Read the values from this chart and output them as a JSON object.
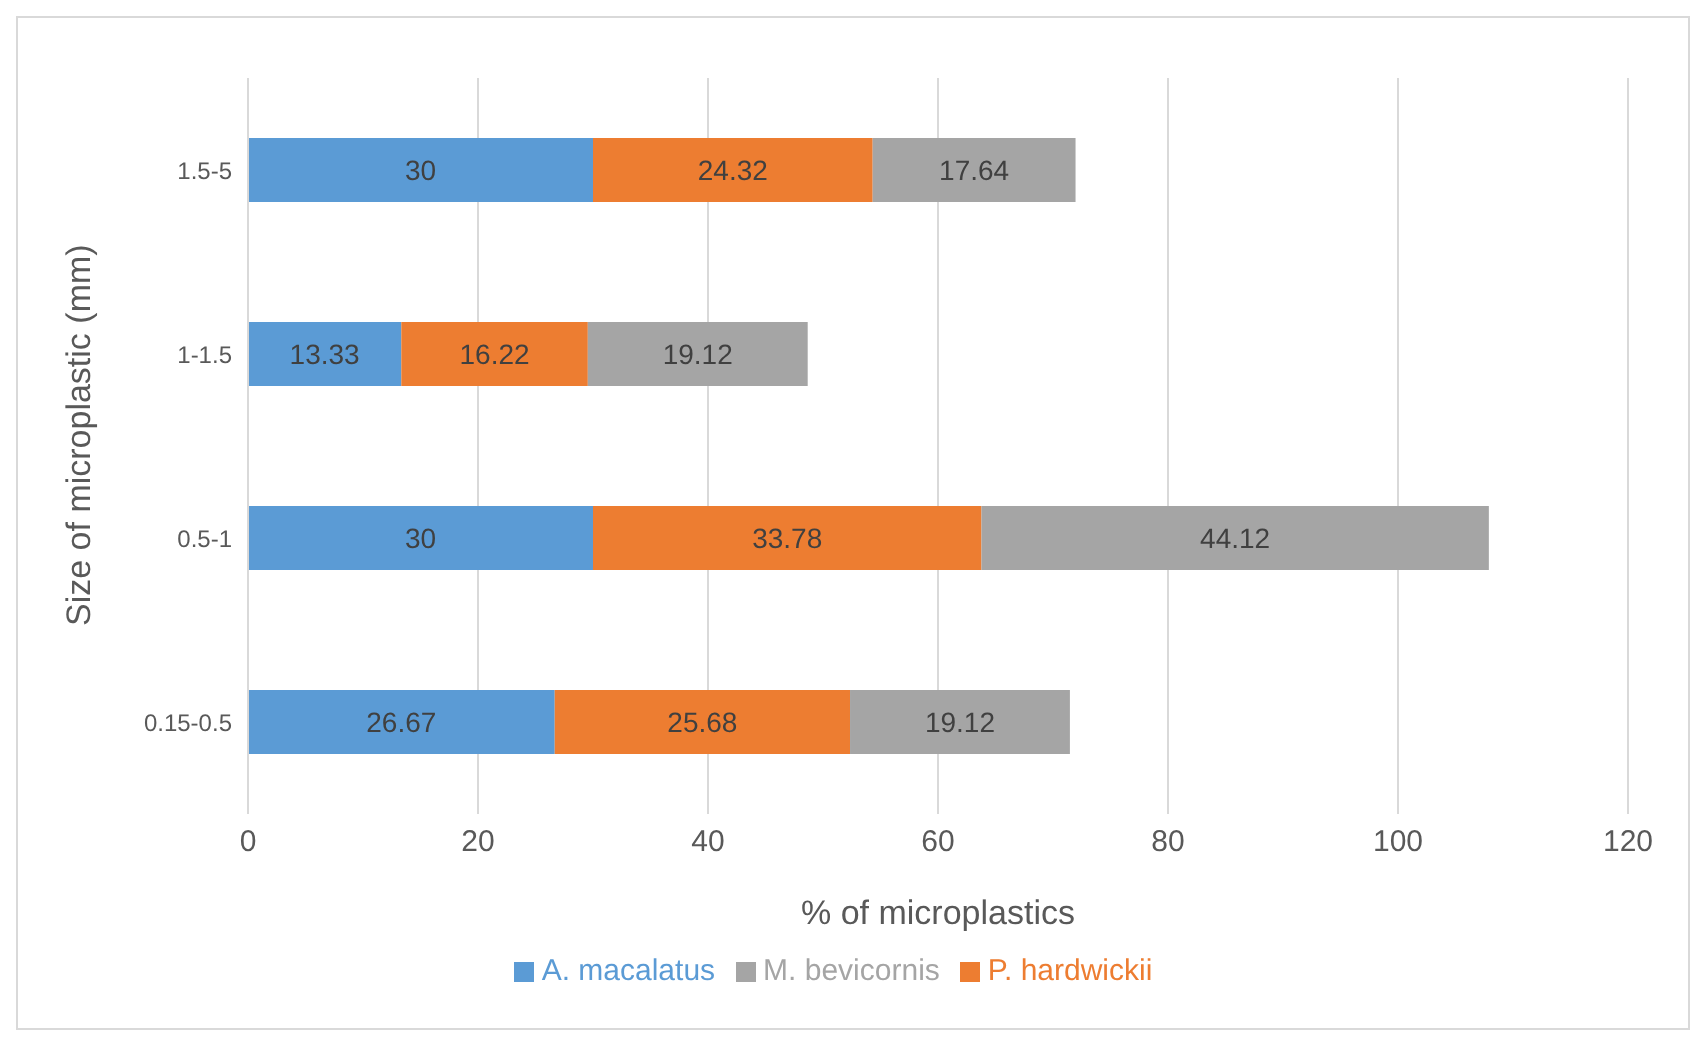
{
  "chart_data": {
    "type": "bar",
    "orientation": "horizontal",
    "stacked": true,
    "xlabel": "% of microplastics",
    "ylabel": "Size of microplastic (mm)",
    "categories": [
      "1.5-5",
      "1-1.5",
      "0.5-1",
      "0.15-0.5"
    ],
    "series": [
      {
        "name": "A. macalatus",
        "color": "#5b9bd5",
        "values": [
          30,
          13.33,
          30,
          26.67
        ]
      },
      {
        "name": "P. hardwickii",
        "color": "#ed7d31",
        "values": [
          24.32,
          16.22,
          33.78,
          25.68
        ]
      },
      {
        "name": "M. bevicornis",
        "color": "#a5a5a5",
        "values": [
          17.64,
          19.12,
          44.12,
          19.12
        ]
      }
    ],
    "xlim": [
      0,
      120
    ],
    "xticks": [
      0,
      20,
      40,
      60,
      80,
      100,
      120
    ],
    "grid": "x",
    "legend": "bottom",
    "data_labels": true
  }
}
